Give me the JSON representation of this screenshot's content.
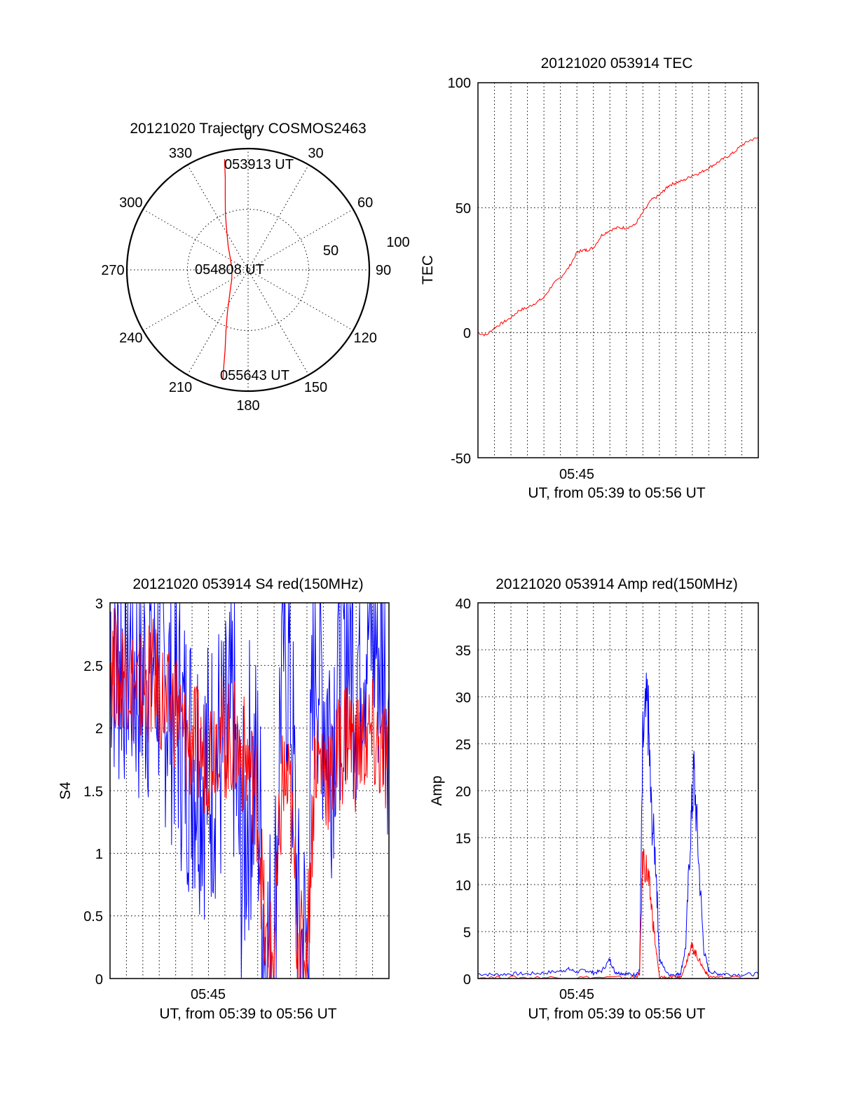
{
  "figure": {
    "background": "#ffffff"
  },
  "chart_data": [
    {
      "type": "polar",
      "title": "20121020 Trajectory COSMOS2463",
      "azimuth_labels": [
        "0",
        "30",
        "60",
        "90",
        "120",
        "150",
        "180",
        "210",
        "240",
        "270",
        "300",
        "330"
      ],
      "radial_labels": [
        "50",
        "100"
      ],
      "radial_range": [
        0,
        100
      ],
      "grid": true,
      "series": [
        {
          "color": "#ff0000",
          "points_az_el": [
            [
              -12,
              6
            ],
            [
              -14,
              20
            ],
            [
              -17,
              32
            ],
            [
              -22,
              45
            ],
            [
              -28,
              56
            ],
            [
              -40,
              67
            ],
            [
              -60,
              75
            ],
            [
              -90,
              78
            ],
            [
              -120,
              76
            ],
            [
              -142,
              68
            ],
            [
              -154,
              55
            ],
            [
              -160,
              42
            ],
            [
              -164,
              28
            ],
            [
              -166,
              15
            ],
            [
              -167,
              7
            ]
          ]
        }
      ],
      "annotations": [
        {
          "text": "053913 UT",
          "az": -12,
          "el": 6
        },
        {
          "text": "054808 UT",
          "az": -90,
          "el": 78
        },
        {
          "text": "055643 UT",
          "az": -167,
          "el": 7
        }
      ]
    },
    {
      "type": "line",
      "title": "20121020 053914 TEC",
      "xlabel": "UT, from 05:39 to 05:56 UT",
      "ylabel": "TEC",
      "xlim": [
        0,
        17
      ],
      "ylim": [
        -50,
        100
      ],
      "x_ticks": [
        {
          "label": "05:45",
          "x": 6
        }
      ],
      "y_ticks": [
        "-50",
        "0",
        "50",
        "100"
      ],
      "grid": true,
      "series": [
        {
          "color": "#ff0000",
          "x": [
            0,
            0.5,
            1,
            1.5,
            2,
            2.5,
            3,
            3.5,
            4,
            4.5,
            5,
            5.5,
            6,
            6.3,
            6.6,
            7,
            7.5,
            8,
            8.5,
            9,
            9.5,
            10,
            10.5,
            11,
            11.3,
            11.6,
            12,
            12.5,
            13,
            13.5,
            14,
            14.5,
            15,
            15.5,
            16,
            16.5,
            17
          ],
          "y": [
            0,
            -1,
            2,
            4,
            6,
            9,
            10,
            12,
            14,
            19,
            22,
            26,
            32,
            33,
            33,
            34,
            39,
            41,
            42,
            42,
            43,
            48,
            53,
            55,
            57,
            59,
            60,
            61,
            63,
            64,
            66,
            68,
            70,
            72,
            75,
            77,
            78
          ]
        }
      ]
    },
    {
      "type": "line",
      "title": "20121020 053914 S4 red(150MHz)",
      "xlabel": "UT, from 05:39 to 05:56 UT",
      "ylabel": "S4",
      "xlim": [
        0,
        17
      ],
      "ylim": [
        0,
        3
      ],
      "x_ticks": [
        {
          "label": "05:45",
          "x": 6
        }
      ],
      "y_ticks": [
        "0",
        "0.5",
        "1",
        "1.5",
        "2",
        "2.5",
        "3"
      ],
      "grid": true,
      "series": [
        {
          "color": "#0000ff",
          "x": [
            0,
            0.5,
            1,
            1.5,
            2,
            2.5,
            3,
            3.5,
            4,
            4.5,
            5,
            5.5,
            6,
            6.5,
            7,
            7.5,
            8,
            8.5,
            9,
            9.5,
            10,
            10.5,
            11,
            11.5,
            12,
            12.5,
            13,
            13.5,
            14,
            14.5,
            15,
            15.5,
            16,
            16.5,
            17
          ],
          "y": [
            2.8,
            2.6,
            2.7,
            2.5,
            2.4,
            2.6,
            2.5,
            2.3,
            2.2,
            1.9,
            1.8,
            1.7,
            1.6,
            1.8,
            1.7,
            2.1,
            0.8,
            1.6,
            1.5,
            0.2,
            0.18,
            2.8,
            2.4,
            0.25,
            0.22,
            2.8,
            2.3,
            2.0,
            2.6,
            2.8,
            2.5,
            2.8,
            2.8,
            2.6,
            2.3
          ]
        },
        {
          "color": "#ff0000",
          "x": [
            0,
            0.5,
            1,
            1.5,
            2,
            2.5,
            3,
            3.5,
            4,
            4.5,
            5,
            5.5,
            6,
            6.5,
            7,
            7.5,
            8,
            8.5,
            9,
            9.5,
            10,
            10.5,
            11,
            11.5,
            12,
            12.5,
            13,
            13.5,
            14,
            14.5,
            15,
            15.5,
            16,
            16.5,
            17
          ],
          "y": [
            2.6,
            2.4,
            2.5,
            2.3,
            2.3,
            2.4,
            2.3,
            2.1,
            2.2,
            1.9,
            1.9,
            1.8,
            1.8,
            2.0,
            1.9,
            1.9,
            1.8,
            1.7,
            1.4,
            0.18,
            0.17,
            1.6,
            1.4,
            0.22,
            0.2,
            1.8,
            1.7,
            1.6,
            1.8,
            2.0,
            1.8,
            1.9,
            1.9,
            1.8,
            1.7
          ]
        }
      ]
    },
    {
      "type": "line",
      "title": "20121020 053914 Amp red(150MHz)",
      "xlabel": "UT, from 05:39 to 05:56 UT",
      "ylabel": "Amp",
      "xlim": [
        0,
        17
      ],
      "ylim": [
        0,
        40
      ],
      "x_ticks": [
        {
          "label": "05:45",
          "x": 6
        }
      ],
      "y_ticks": [
        "0",
        "5",
        "10",
        "15",
        "20",
        "25",
        "30",
        "35",
        "40"
      ],
      "grid": true,
      "series": [
        {
          "color": "#0000ff",
          "x": [
            0,
            1,
            2,
            3,
            4,
            5,
            5.5,
            6,
            6.5,
            7,
            7.5,
            8,
            8.3,
            8.6,
            9,
            9.5,
            9.8,
            10,
            10.3,
            10.5,
            10.8,
            11,
            11.5,
            12,
            12.3,
            12.6,
            12.9,
            13.1,
            13.4,
            13.7,
            14,
            14.5,
            15,
            16,
            17
          ],
          "y": [
            0.5,
            0.4,
            0.5,
            0.5,
            0.6,
            0.8,
            1.0,
            0.7,
            0.9,
            0.6,
            0.8,
            2.0,
            0.7,
            0.6,
            0.5,
            0.4,
            0.8,
            25,
            29,
            18,
            12,
            2.0,
            0.5,
            0.4,
            0.6,
            3.5,
            16,
            22,
            12,
            3.0,
            0.8,
            0.5,
            0.5,
            0.4,
            0.5
          ]
        },
        {
          "color": "#ff0000",
          "x": [
            0,
            2,
            4,
            6,
            8,
            9.5,
            9.8,
            10,
            10.3,
            10.5,
            10.8,
            11,
            11.5,
            12,
            12.3,
            12.6,
            12.9,
            13.1,
            13.4,
            13.7,
            14,
            15,
            17
          ],
          "y": [
            0.1,
            0.1,
            0.1,
            0.1,
            0.1,
            0.1,
            0.5,
            13,
            11,
            8,
            3,
            0.2,
            0.1,
            0.1,
            0.2,
            1.5,
            3.5,
            3.0,
            2.0,
            1.0,
            0.2,
            0.1,
            0.1
          ]
        }
      ]
    }
  ]
}
